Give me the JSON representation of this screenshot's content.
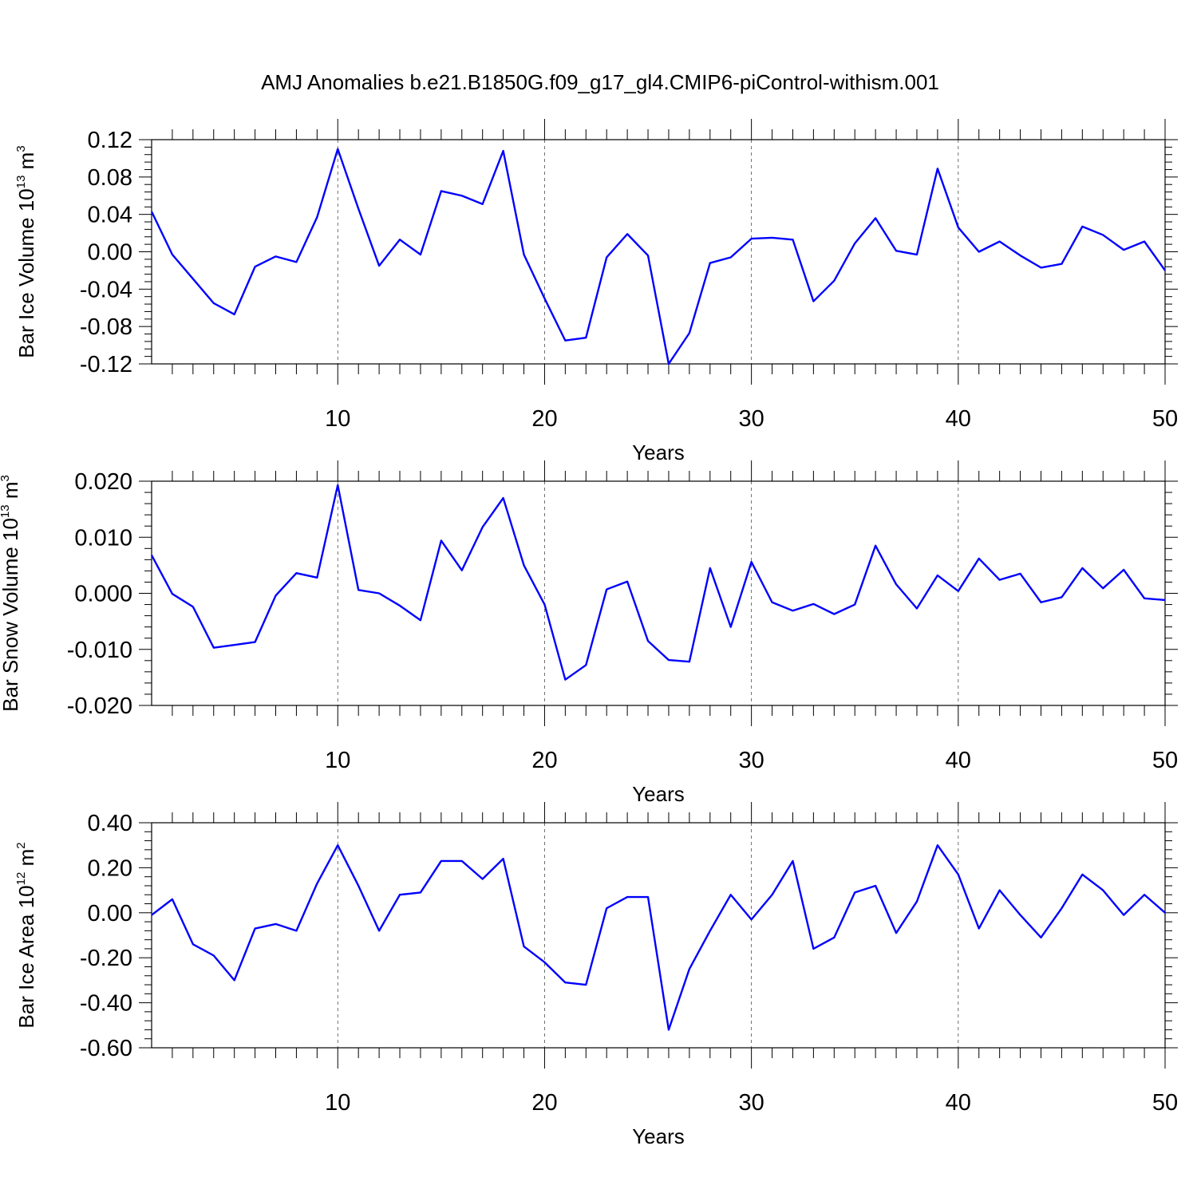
{
  "title": "AMJ Anomalies b.e21.B1850G.f09_g17_gl4.CMIP6-piControl-withism.001",
  "colors": {
    "series": "#0000ff",
    "axis": "#000000",
    "grid": "#000000"
  },
  "chart_data": [
    {
      "type": "line",
      "ylabel": {
        "main": "Bar Ice Volume 10",
        "exp": "13",
        "unit": " m",
        "unit_exp": "3"
      },
      "xlabel": "Years",
      "xlim": [
        1,
        50
      ],
      "ylim": [
        -0.12,
        0.12
      ],
      "xticks": [
        10,
        20,
        30,
        40,
        50
      ],
      "xtick_labels": [
        "10",
        "20",
        "30",
        "40",
        "50"
      ],
      "yticks": [
        -0.12,
        -0.08,
        -0.04,
        0.0,
        0.04,
        0.08,
        0.12
      ],
      "ytick_labels": [
        "-0.12",
        "-0.08",
        "-0.04",
        "0.00",
        "0.04",
        "0.08",
        "0.12"
      ],
      "series": [
        {
          "name": "Bar Ice Volume",
          "x": [
            1,
            2,
            3,
            4,
            5,
            6,
            7,
            8,
            9,
            10,
            11,
            12,
            13,
            14,
            15,
            16,
            17,
            18,
            19,
            20,
            21,
            22,
            23,
            24,
            25,
            26,
            27,
            28,
            29,
            30,
            31,
            32,
            33,
            34,
            35,
            36,
            37,
            38,
            39,
            40,
            41,
            42,
            43,
            44,
            45,
            46,
            47,
            48,
            49,
            50
          ],
          "values": [
            0.043,
            -0.003,
            -0.029,
            -0.055,
            -0.067,
            -0.016,
            -0.005,
            -0.011,
            0.037,
            0.11,
            0.046,
            -0.015,
            0.013,
            -0.003,
            0.065,
            0.06,
            0.051,
            0.108,
            -0.003,
            -0.05,
            -0.095,
            -0.092,
            -0.006,
            0.019,
            -0.004,
            -0.12,
            -0.087,
            -0.012,
            -0.006,
            0.014,
            0.015,
            0.013,
            -0.053,
            -0.031,
            0.009,
            0.036,
            0.001,
            -0.003,
            0.089,
            0.026,
            0.0,
            0.011,
            -0.004,
            -0.017,
            -0.013,
            0.027,
            0.018,
            0.002,
            0.011,
            -0.02
          ]
        }
      ]
    },
    {
      "type": "line",
      "ylabel": {
        "main": "Bar Snow Volume 10",
        "exp": "13",
        "unit": " m",
        "unit_exp": "3"
      },
      "xlabel": "Years",
      "xlim": [
        1,
        50
      ],
      "ylim": [
        -0.02,
        0.02
      ],
      "xticks": [
        10,
        20,
        30,
        40,
        50
      ],
      "xtick_labels": [
        "10",
        "20",
        "30",
        "40",
        "50"
      ],
      "yticks": [
        -0.02,
        -0.01,
        0.0,
        0.01,
        0.02
      ],
      "ytick_labels": [
        "-0.020",
        "-0.010",
        "0.000",
        "0.010",
        "0.020"
      ],
      "series": [
        {
          "name": "Bar Snow Volume",
          "x": [
            1,
            2,
            3,
            4,
            5,
            6,
            7,
            8,
            9,
            10,
            11,
            12,
            13,
            14,
            15,
            16,
            17,
            18,
            19,
            20,
            21,
            22,
            23,
            24,
            25,
            26,
            27,
            28,
            29,
            30,
            31,
            32,
            33,
            34,
            35,
            36,
            37,
            38,
            39,
            40,
            41,
            42,
            43,
            44,
            45,
            46,
            47,
            48,
            49,
            50
          ],
          "values": [
            0.0068,
            -0.0001,
            -0.0024,
            -0.0097,
            -0.0092,
            -0.0087,
            -0.0004,
            0.0036,
            0.0028,
            0.0193,
            0.0006,
            0.0,
            -0.0022,
            -0.0048,
            0.0094,
            0.0041,
            0.0118,
            0.017,
            0.005,
            -0.002,
            -0.0154,
            -0.0128,
            0.0007,
            0.0021,
            -0.0085,
            -0.0119,
            -0.0122,
            0.0045,
            -0.006,
            0.0056,
            -0.0016,
            -0.0031,
            -0.0019,
            -0.0037,
            -0.002,
            0.0085,
            0.0016,
            -0.0027,
            0.0032,
            0.0004,
            0.0062,
            0.0024,
            0.0035,
            -0.0016,
            -0.0007,
            0.0045,
            0.0009,
            0.0042,
            -0.0009,
            -0.0012
          ]
        }
      ]
    },
    {
      "type": "line",
      "ylabel": {
        "main": "Bar Ice Area 10",
        "exp": "12",
        "unit": " m",
        "unit_exp": "2"
      },
      "xlabel": "Years",
      "xlim": [
        1,
        50
      ],
      "ylim": [
        -0.6,
        0.4
      ],
      "xticks": [
        10,
        20,
        30,
        40,
        50
      ],
      "xtick_labels": [
        "10",
        "20",
        "30",
        "40",
        "50"
      ],
      "yticks": [
        -0.6,
        -0.4,
        -0.2,
        0.0,
        0.2,
        0.4
      ],
      "ytick_labels": [
        "-0.60",
        "-0.40",
        "-0.20",
        "0.00",
        "0.20",
        "0.40"
      ],
      "series": [
        {
          "name": "Bar Ice Area",
          "x": [
            1,
            2,
            3,
            4,
            5,
            6,
            7,
            8,
            9,
            10,
            11,
            12,
            13,
            14,
            15,
            16,
            17,
            18,
            19,
            20,
            21,
            22,
            23,
            24,
            25,
            26,
            27,
            28,
            29,
            30,
            31,
            32,
            33,
            34,
            35,
            36,
            37,
            38,
            39,
            40,
            41,
            42,
            43,
            44,
            45,
            46,
            47,
            48,
            49,
            50
          ],
          "values": [
            -0.01,
            0.06,
            -0.14,
            -0.19,
            -0.3,
            -0.07,
            -0.05,
            -0.08,
            0.13,
            0.3,
            0.12,
            -0.08,
            0.08,
            0.09,
            0.23,
            0.23,
            0.15,
            0.24,
            -0.15,
            -0.22,
            -0.31,
            -0.32,
            0.02,
            0.07,
            0.07,
            -0.52,
            -0.25,
            -0.08,
            0.08,
            -0.03,
            0.08,
            0.23,
            -0.16,
            -0.11,
            0.09,
            0.12,
            -0.09,
            0.05,
            0.3,
            0.17,
            -0.07,
            0.1,
            -0.01,
            -0.11,
            0.02,
            0.17,
            0.1,
            -0.01,
            0.08,
            0.0
          ]
        }
      ]
    }
  ]
}
